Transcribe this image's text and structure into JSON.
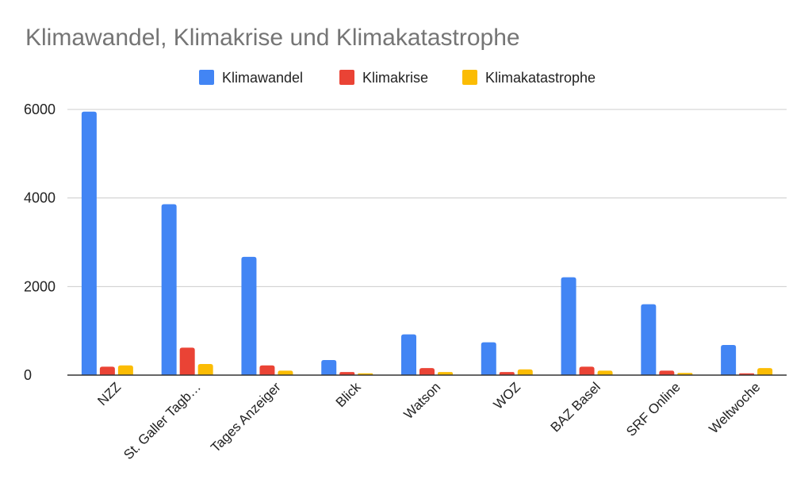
{
  "chart_data": {
    "type": "bar",
    "title": "Klimawandel, Klimakrise und Klimakatastrophe",
    "xlabel": "",
    "ylabel": "",
    "categories": [
      "NZZ",
      "St. Galler Tagb…",
      "Tages Anzeiger",
      "Blick",
      "Watson",
      "WOZ",
      "BAZ Basel",
      "SRF Online",
      "Weltwoche"
    ],
    "series": [
      {
        "name": "Klimawandel",
        "color": "#4285F4",
        "values": [
          5950,
          3860,
          2670,
          340,
          920,
          740,
          2210,
          1600,
          680
        ]
      },
      {
        "name": "Klimakrise",
        "color": "#EA4335",
        "values": [
          190,
          620,
          220,
          70,
          160,
          70,
          190,
          100,
          40
        ]
      },
      {
        "name": "Klimakatastrophe",
        "color": "#FBBC04",
        "values": [
          220,
          250,
          100,
          40,
          70,
          130,
          100,
          50,
          160
        ]
      }
    ],
    "ylim": [
      0,
      6000
    ],
    "yticks": [
      0,
      2000,
      4000,
      6000
    ],
    "grid": true,
    "legend": "top-center"
  }
}
